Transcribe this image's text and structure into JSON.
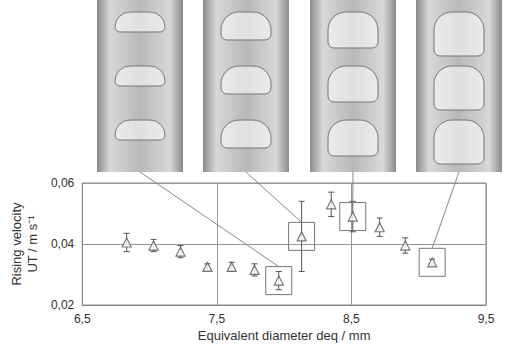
{
  "chart_data": {
    "type": "scatter",
    "xlabel": "Equivalent diameter deq / mm",
    "ylabel": [
      "Rising velocity",
      "UT / m s⁻¹"
    ],
    "x": [
      6.83,
      7.03,
      7.23,
      7.43,
      7.61,
      7.78,
      7.96,
      8.13,
      8.35,
      8.51,
      8.71,
      8.9,
      9.1
    ],
    "values": [
      0.0405,
      0.0395,
      0.0375,
      0.0325,
      0.0325,
      0.0315,
      0.028,
      0.0425,
      0.053,
      0.049,
      0.0455,
      0.0395,
      0.034
    ],
    "errors": [
      0.003,
      0.002,
      0.002,
      0.001,
      0.0015,
      0.002,
      0.003,
      0.0115,
      0.004,
      0.005,
      0.003,
      0.0025,
      0.001
    ],
    "xlim": [
      6.5,
      9.5
    ],
    "xticks": [
      {
        "value": 6.5,
        "label": "6,5"
      },
      {
        "value": 7.5,
        "label": "7,5"
      },
      {
        "value": 8.5,
        "label": "8,5"
      },
      {
        "value": 9.5,
        "label": "9,5"
      }
    ],
    "ylim": [
      0.02,
      0.06
    ],
    "yticks": [
      {
        "value": 0.02,
        "label": "0,02"
      },
      {
        "value": 0.04,
        "label": "0,04"
      },
      {
        "value": 0.06,
        "label": "0,06"
      }
    ],
    "grid": true,
    "marker": "triangle",
    "color": "#555555"
  }
}
